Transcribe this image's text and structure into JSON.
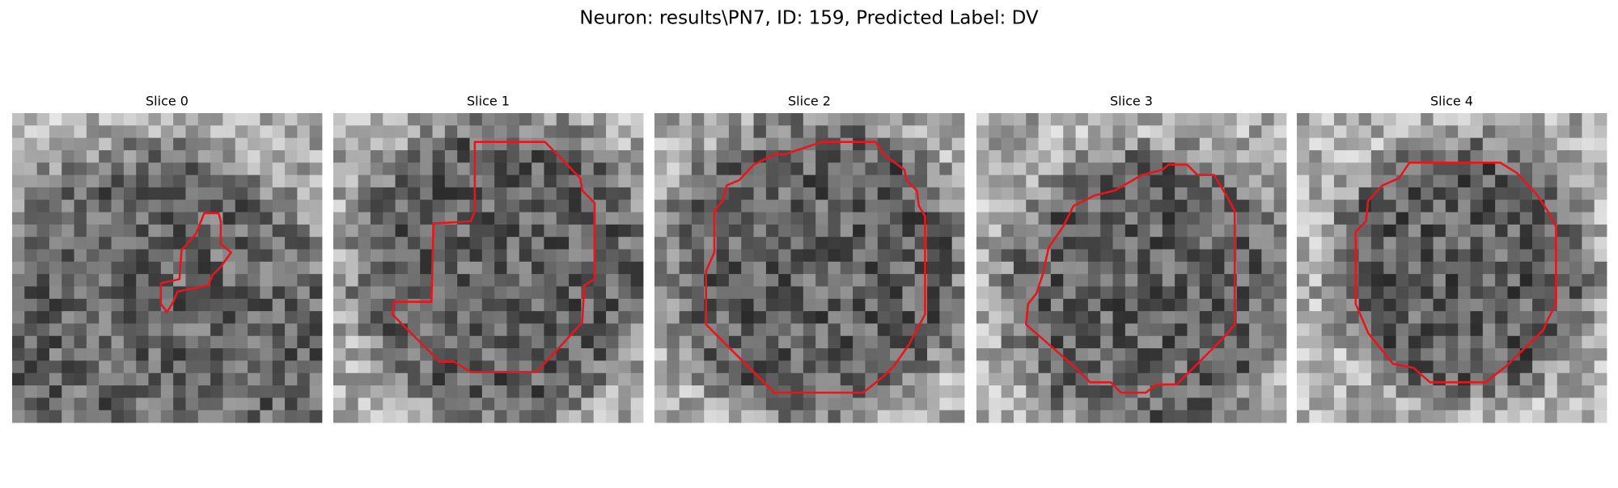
{
  "title": "Neuron: results\\PN7, ID: 159, Predicted Label: DV",
  "panels": [
    {
      "title": "Slice 0"
    },
    {
      "title": "Slice 1"
    },
    {
      "title": "Slice 2"
    },
    {
      "title": "Slice 3"
    },
    {
      "title": "Slice 4"
    }
  ]
}
